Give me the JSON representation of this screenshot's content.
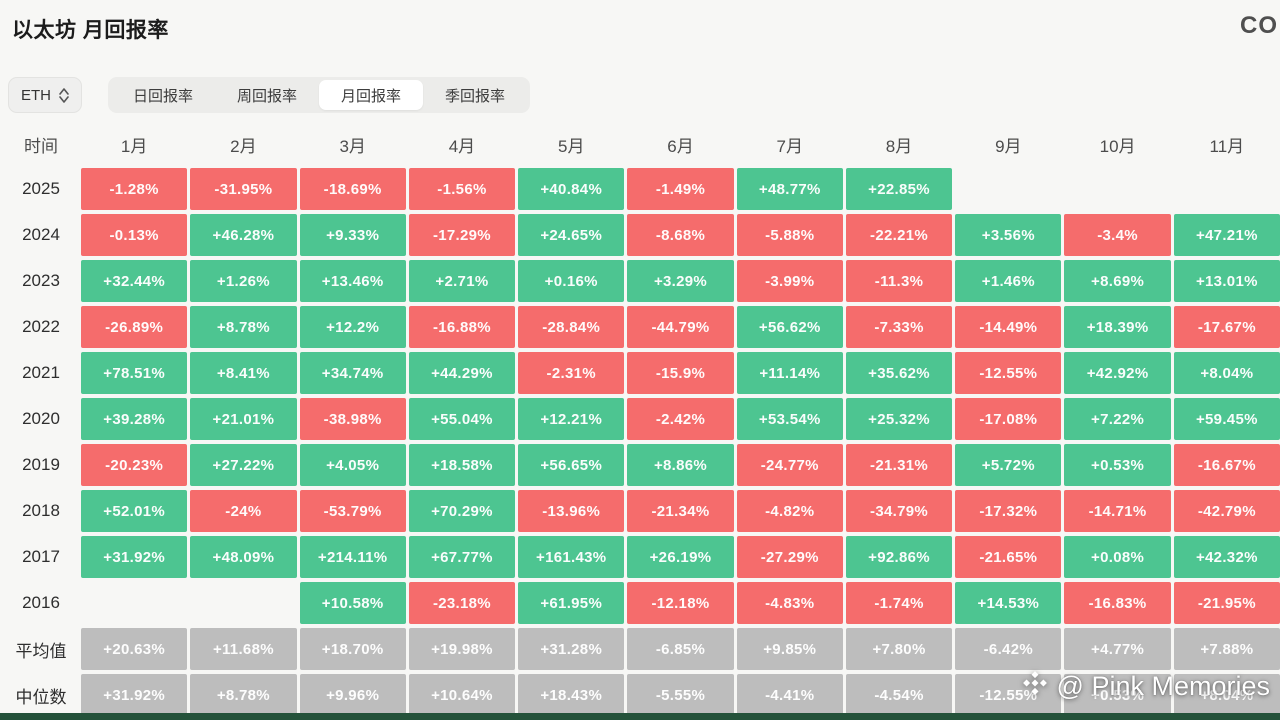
{
  "page": {
    "title": "以太坊 月回报率",
    "logo_fragment": "CO",
    "background": "#f7f7f5",
    "bottom_strip_color": "#24523a"
  },
  "controls": {
    "symbol": "ETH",
    "tabs": [
      {
        "key": "daily",
        "label": "日回报率",
        "active": false
      },
      {
        "key": "weekly",
        "label": "周回报率",
        "active": false
      },
      {
        "key": "monthly",
        "label": "月回报率",
        "active": true
      },
      {
        "key": "quarterly",
        "label": "季回报率",
        "active": false
      }
    ]
  },
  "watermark": {
    "text": "@ Pink Memories"
  },
  "chart_data": {
    "type": "heatmap",
    "title": "以太坊 月回报率",
    "row_header": "时间",
    "columns": [
      "1月",
      "2月",
      "3月",
      "4月",
      "5月",
      "6月",
      "7月",
      "8月",
      "9月",
      "10月",
      "11月"
    ],
    "colors": {
      "positive": "#4dc591",
      "negative": "#f56c6c",
      "stat": "#bdbdbd"
    },
    "rows": [
      {
        "label": "2025",
        "kind": "year",
        "values": [
          "-1.28%",
          "-31.95%",
          "-18.69%",
          "-1.56%",
          "+40.84%",
          "-1.49%",
          "+48.77%",
          "+22.85%",
          null,
          null,
          null
        ]
      },
      {
        "label": "2024",
        "kind": "year",
        "values": [
          "-0.13%",
          "+46.28%",
          "+9.33%",
          "-17.29%",
          "+24.65%",
          "-8.68%",
          "-5.88%",
          "-22.21%",
          "+3.56%",
          "-3.4%",
          "+47.21%"
        ]
      },
      {
        "label": "2023",
        "kind": "year",
        "values": [
          "+32.44%",
          "+1.26%",
          "+13.46%",
          "+2.71%",
          "+0.16%",
          "+3.29%",
          "-3.99%",
          "-11.3%",
          "+1.46%",
          "+8.69%",
          "+13.01%"
        ]
      },
      {
        "label": "2022",
        "kind": "year",
        "values": [
          "-26.89%",
          "+8.78%",
          "+12.2%",
          "-16.88%",
          "-28.84%",
          "-44.79%",
          "+56.62%",
          "-7.33%",
          "-14.49%",
          "+18.39%",
          "-17.67%"
        ]
      },
      {
        "label": "2021",
        "kind": "year",
        "values": [
          "+78.51%",
          "+8.41%",
          "+34.74%",
          "+44.29%",
          "-2.31%",
          "-15.9%",
          "+11.14%",
          "+35.62%",
          "-12.55%",
          "+42.92%",
          "+8.04%"
        ]
      },
      {
        "label": "2020",
        "kind": "year",
        "values": [
          "+39.28%",
          "+21.01%",
          "-38.98%",
          "+55.04%",
          "+12.21%",
          "-2.42%",
          "+53.54%",
          "+25.32%",
          "-17.08%",
          "+7.22%",
          "+59.45%"
        ]
      },
      {
        "label": "2019",
        "kind": "year",
        "values": [
          "-20.23%",
          "+27.22%",
          "+4.05%",
          "+18.58%",
          "+56.65%",
          "+8.86%",
          "-24.77%",
          "-21.31%",
          "+5.72%",
          "+0.53%",
          "-16.67%"
        ]
      },
      {
        "label": "2018",
        "kind": "year",
        "values": [
          "+52.01%",
          "-24%",
          "-53.79%",
          "+70.29%",
          "-13.96%",
          "-21.34%",
          "-4.82%",
          "-34.79%",
          "-17.32%",
          "-14.71%",
          "-42.79%"
        ]
      },
      {
        "label": "2017",
        "kind": "year",
        "values": [
          "+31.92%",
          "+48.09%",
          "+214.11%",
          "+67.77%",
          "+161.43%",
          "+26.19%",
          "-27.29%",
          "+92.86%",
          "-21.65%",
          "+0.08%",
          "+42.32%"
        ]
      },
      {
        "label": "2016",
        "kind": "year",
        "values": [
          null,
          null,
          "+10.58%",
          "-23.18%",
          "+61.95%",
          "-12.18%",
          "-4.83%",
          "-1.74%",
          "+14.53%",
          "-16.83%",
          "-21.95%"
        ]
      },
      {
        "label": "平均值",
        "kind": "stat",
        "values": [
          "+20.63%",
          "+11.68%",
          "+18.70%",
          "+19.98%",
          "+31.28%",
          "-6.85%",
          "+9.85%",
          "+7.80%",
          "-6.42%",
          "+4.77%",
          "+7.88%"
        ]
      },
      {
        "label": "中位数",
        "kind": "stat",
        "values": [
          "+31.92%",
          "+8.78%",
          "+9.96%",
          "+10.64%",
          "+18.43%",
          "-5.55%",
          "-4.41%",
          "-4.54%",
          "-12.55%",
          "+0.53%",
          "+8.04%"
        ]
      }
    ]
  }
}
